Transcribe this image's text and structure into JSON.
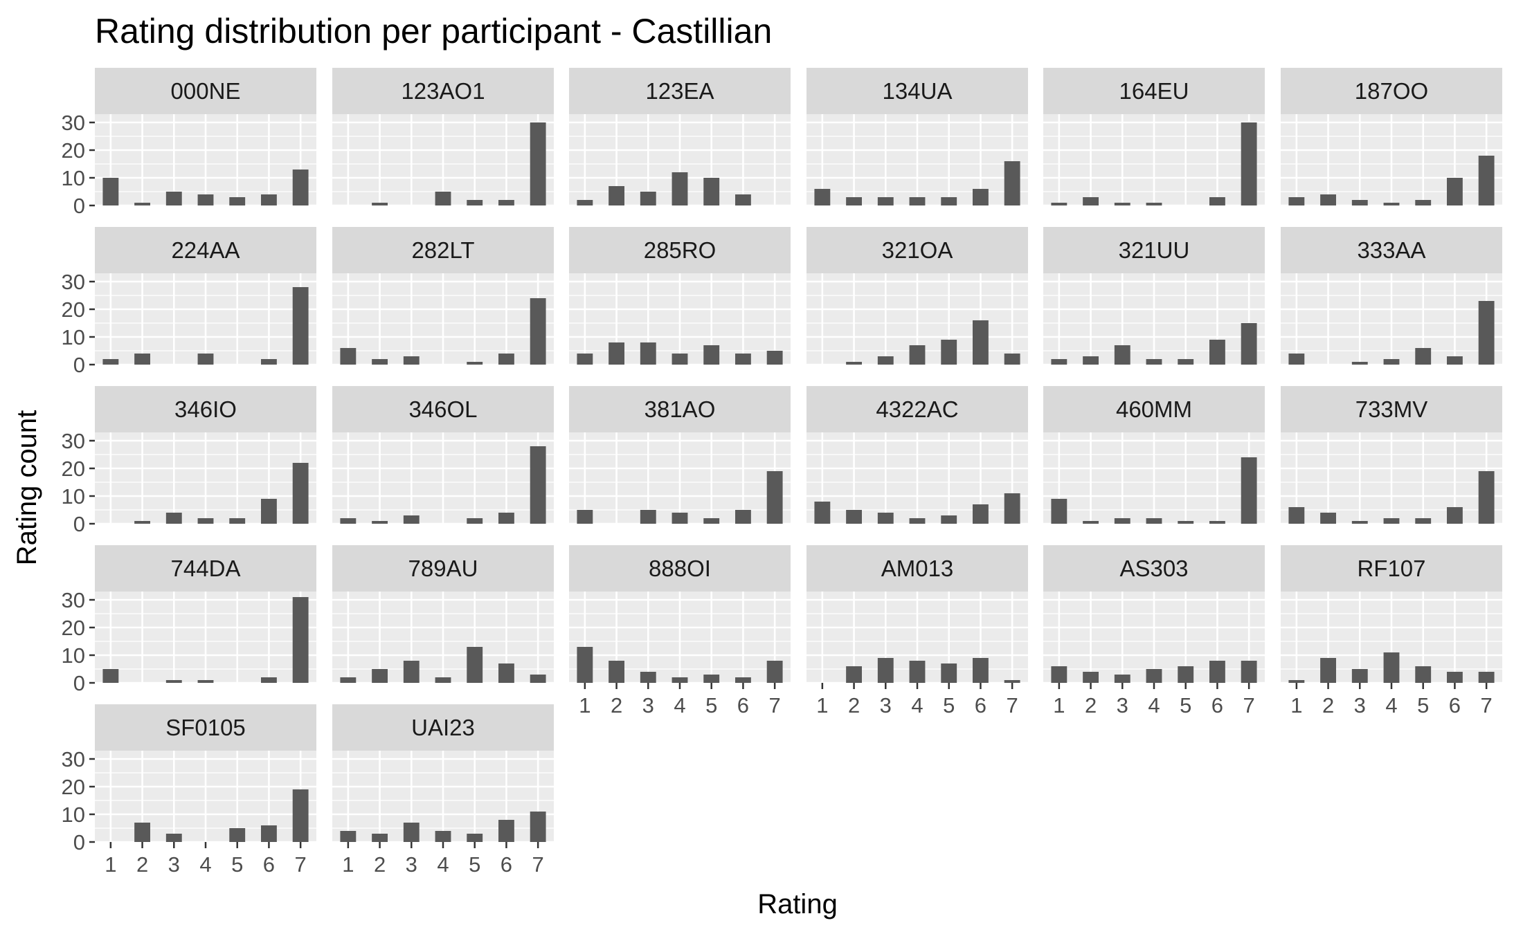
{
  "chart_data": {
    "type": "bar",
    "title": "Rating distribution per participant - Castillian",
    "xlabel": "Rating",
    "ylabel": "Rating count",
    "ylim": [
      0,
      33
    ],
    "yticks": [
      0,
      10,
      20,
      30
    ],
    "categories": [
      "1",
      "2",
      "3",
      "4",
      "5",
      "6",
      "7"
    ],
    "grid": true,
    "facets": [
      {
        "name": "000NE",
        "values": [
          10,
          1,
          5,
          4,
          3,
          4,
          13
        ]
      },
      {
        "name": "123AO1",
        "values": [
          0,
          1,
          0,
          5,
          2,
          2,
          30
        ]
      },
      {
        "name": "123EA",
        "values": [
          2,
          7,
          5,
          12,
          10,
          4,
          0
        ]
      },
      {
        "name": "134UA",
        "values": [
          6,
          3,
          3,
          3,
          3,
          6,
          16
        ]
      },
      {
        "name": "164EU",
        "values": [
          1,
          3,
          1,
          1,
          0,
          3,
          30
        ]
      },
      {
        "name": "187OO",
        "values": [
          3,
          4,
          2,
          1,
          2,
          10,
          18
        ]
      },
      {
        "name": "224AA",
        "values": [
          2,
          4,
          0,
          4,
          0,
          2,
          28
        ]
      },
      {
        "name": "282LT",
        "values": [
          6,
          2,
          3,
          0,
          1,
          4,
          24
        ]
      },
      {
        "name": "285RO",
        "values": [
          4,
          8,
          8,
          4,
          7,
          4,
          5
        ]
      },
      {
        "name": "321OA",
        "values": [
          0,
          1,
          3,
          7,
          9,
          16,
          4
        ]
      },
      {
        "name": "321UU",
        "values": [
          2,
          3,
          7,
          2,
          2,
          9,
          15
        ]
      },
      {
        "name": "333AA",
        "values": [
          4,
          0,
          1,
          2,
          6,
          3,
          23
        ]
      },
      {
        "name": "346IO",
        "values": [
          0,
          1,
          4,
          2,
          2,
          9,
          22
        ]
      },
      {
        "name": "346OL",
        "values": [
          2,
          1,
          3,
          0,
          2,
          4,
          28
        ]
      },
      {
        "name": "381AO",
        "values": [
          5,
          0,
          5,
          4,
          2,
          5,
          19
        ]
      },
      {
        "name": "4322AC",
        "values": [
          8,
          5,
          4,
          2,
          3,
          7,
          11
        ]
      },
      {
        "name": "460MM",
        "values": [
          9,
          1,
          2,
          2,
          1,
          1,
          24
        ]
      },
      {
        "name": "733MV",
        "values": [
          6,
          4,
          1,
          2,
          2,
          6,
          19
        ]
      },
      {
        "name": "744DA",
        "values": [
          5,
          0,
          1,
          1,
          0,
          2,
          31
        ]
      },
      {
        "name": "789AU",
        "values": [
          2,
          5,
          8,
          2,
          13,
          7,
          3
        ]
      },
      {
        "name": "888OI",
        "values": [
          13,
          8,
          4,
          2,
          3,
          2,
          8
        ]
      },
      {
        "name": "AM013",
        "values": [
          0,
          6,
          9,
          8,
          7,
          9,
          1
        ]
      },
      {
        "name": "AS303",
        "values": [
          6,
          4,
          3,
          5,
          6,
          8,
          8
        ]
      },
      {
        "name": "RF107",
        "values": [
          1,
          9,
          5,
          11,
          6,
          4,
          4
        ]
      },
      {
        "name": "SF0105",
        "values": [
          0,
          7,
          3,
          0,
          5,
          6,
          19
        ]
      },
      {
        "name": "UAI23",
        "values": [
          4,
          3,
          7,
          4,
          3,
          8,
          11
        ]
      }
    ]
  },
  "colors": {
    "bar": "#595959",
    "panel": "#ebebeb",
    "strip": "#d9d9d9",
    "grid_major": "#ffffff",
    "tick": "#333333"
  }
}
